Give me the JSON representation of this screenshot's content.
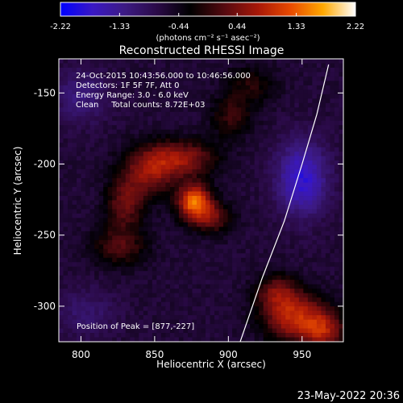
{
  "chart_data": {
    "type": "heatmap",
    "title": "Reconstructed RHESSI Image",
    "xlabel": "Heliocentric X (arcsec)",
    "ylabel": "Heliocentric Y (arcsec)",
    "xlim": [
      785,
      978
    ],
    "ylim": [
      -325,
      -126
    ],
    "x_ticks": [
      800,
      850,
      900,
      950
    ],
    "y_ticks": [
      -150,
      -200,
      -250,
      -300
    ],
    "colorbar": {
      "label": "(photons cm⁻² s⁻¹ asec⁻²)",
      "min": -2.22,
      "max": 2.22,
      "ticks": [
        -2.22,
        -1.33,
        -0.44,
        0.44,
        1.33,
        2.22
      ],
      "colormap": [
        "#0000ff",
        "#3a18c4",
        "#3c1a82",
        "#2a0a46",
        "#000000",
        "#580a10",
        "#a81808",
        "#e84a00",
        "#ffa800",
        "#ffffff"
      ]
    },
    "annotations": [
      "24-Oct-2015 10:43:56.000 to 10:46:56.000",
      "Detectors: 1F 5F 7F, Att 0",
      "Energy Range: 3.0 - 6.0 keV",
      "Clean     Total counts: 8.72E+03"
    ],
    "peak_label": "Position of Peak = [877,-227]",
    "peak": [
      877,
      -227
    ],
    "limb_curve": [
      [
        908,
        -325
      ],
      [
        923,
        -280
      ],
      [
        938,
        -240
      ],
      [
        950,
        -200
      ],
      [
        960,
        -165
      ],
      [
        968,
        -130
      ]
    ],
    "sources": [
      {
        "x": 877,
        "y": -227,
        "sx": 8,
        "sy": 9,
        "amp": 2.0
      },
      {
        "x": 868,
        "y": -196,
        "sx": 17,
        "sy": 9,
        "amp": 1.15
      },
      {
        "x": 846,
        "y": -206,
        "sx": 13,
        "sy": 12,
        "amp": 1.05
      },
      {
        "x": 830,
        "y": -228,
        "sx": 9,
        "sy": 12,
        "amp": 0.95
      },
      {
        "x": 826,
        "y": -258,
        "sx": 13,
        "sy": 10,
        "amp": 0.8
      },
      {
        "x": 902,
        "y": -167,
        "sx": 10,
        "sy": 10,
        "amp": 0.65
      },
      {
        "x": 915,
        "y": -145,
        "sx": 12,
        "sy": 10,
        "amp": 0.55
      },
      {
        "x": 890,
        "y": -238,
        "sx": 9,
        "sy": 8,
        "amp": 0.85
      },
      {
        "x": 945,
        "y": -308,
        "sx": 15,
        "sy": 12,
        "amp": 1.45
      },
      {
        "x": 965,
        "y": -318,
        "sx": 10,
        "sy": 10,
        "amp": 1.1
      },
      {
        "x": 933,
        "y": -290,
        "sx": 10,
        "sy": 9,
        "amp": 0.9
      },
      {
        "x": 950,
        "y": -210,
        "sx": 12,
        "sy": 18,
        "amp": -1.2
      },
      {
        "x": 800,
        "y": -152,
        "sx": 13,
        "sy": 13,
        "amp": -0.55
      },
      {
        "x": 803,
        "y": -305,
        "sx": 15,
        "sy": 12,
        "amp": -0.4
      }
    ]
  },
  "footer": {
    "date": "23-May-2022 20:36"
  }
}
